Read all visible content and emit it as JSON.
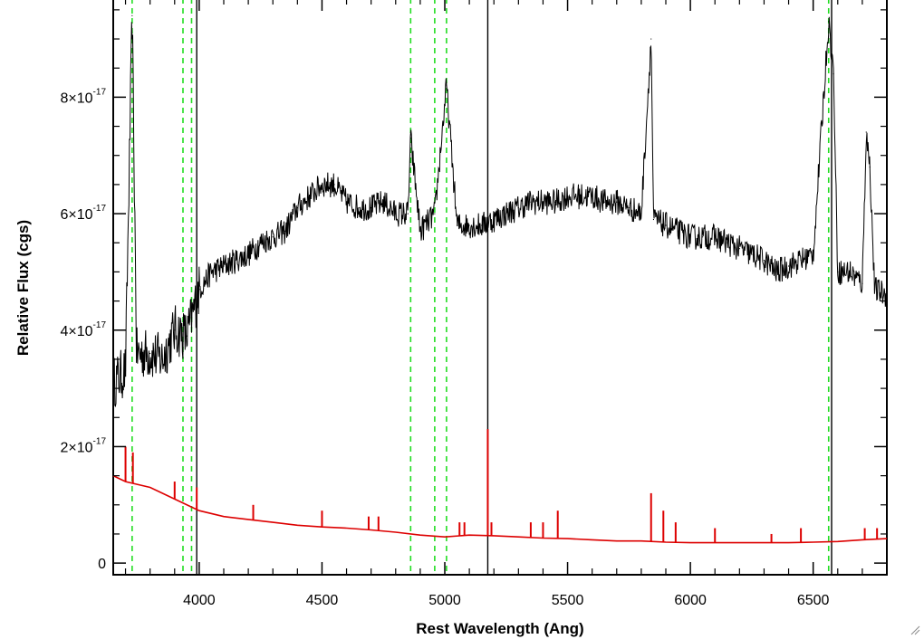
{
  "chart_data": {
    "type": "line",
    "title": "",
    "xlabel": "Rest Wavelength (Ang)",
    "ylabel": "Relative Flux (cgs)",
    "xlim": [
      3650,
      6800
    ],
    "ylim": [
      -2e-18,
      9.7e-17
    ],
    "x_ticks": [
      4000,
      4500,
      5000,
      5500,
      6000,
      6500
    ],
    "x_tick_labels": [
      "4000",
      "4500",
      "5000",
      "5500",
      "6000",
      "6500"
    ],
    "y_ticks": [
      0,
      2e-17,
      4e-17,
      6e-17,
      8e-17
    ],
    "y_tick_labels": [
      {
        "mantissa": "0",
        "exponent": ""
      },
      {
        "mantissa": "2×10",
        "exponent": "-17"
      },
      {
        "mantissa": "4×10",
        "exponent": "-17"
      },
      {
        "mantissa": "6×10",
        "exponent": "-17"
      },
      {
        "mantissa": "8×10",
        "exponent": "-17"
      }
    ],
    "grid": false,
    "reference_lines": {
      "dashed_green": [
        3727,
        3934,
        3969,
        4861,
        4959,
        5007,
        6563
      ],
      "solid_black": [
        3990,
        5175,
        6575
      ]
    },
    "series": [
      {
        "color": "#000000",
        "points": [
          [
            3650,
            3.1e-17
          ],
          [
            3700,
            3.3e-17
          ],
          [
            3727,
            9.4e-17
          ],
          [
            3745,
            3.6e-17
          ],
          [
            3800,
            3.6e-17
          ],
          [
            3850,
            3.5e-17
          ],
          [
            3900,
            4e-17
          ],
          [
            3950,
            3.9e-17
          ],
          [
            4000,
            4.7e-17
          ],
          [
            4050,
            5e-17
          ],
          [
            4100,
            5.1e-17
          ],
          [
            4150,
            5.2e-17
          ],
          [
            4200,
            5.3e-17
          ],
          [
            4250,
            5.5e-17
          ],
          [
            4300,
            5.6e-17
          ],
          [
            4350,
            5.7e-17
          ],
          [
            4400,
            6.1e-17
          ],
          [
            4450,
            6.3e-17
          ],
          [
            4500,
            6.5e-17
          ],
          [
            4550,
            6.5e-17
          ],
          [
            4600,
            6.2e-17
          ],
          [
            4650,
            6.1e-17
          ],
          [
            4700,
            6.1e-17
          ],
          [
            4750,
            6.2e-17
          ],
          [
            4800,
            6e-17
          ],
          [
            4850,
            6e-17
          ],
          [
            4861,
            7.3e-17
          ],
          [
            4900,
            5.7e-17
          ],
          [
            4959,
            6e-17
          ],
          [
            5007,
            8.2e-17
          ],
          [
            5050,
            5.8e-17
          ],
          [
            5100,
            5.8e-17
          ],
          [
            5150,
            5.8e-17
          ],
          [
            5200,
            5.9e-17
          ],
          [
            5250,
            6e-17
          ],
          [
            5300,
            6.1e-17
          ],
          [
            5350,
            6.2e-17
          ],
          [
            5400,
            6.2e-17
          ],
          [
            5450,
            6.2e-17
          ],
          [
            5500,
            6.3e-17
          ],
          [
            5550,
            6.3e-17
          ],
          [
            5600,
            6.3e-17
          ],
          [
            5650,
            6.2e-17
          ],
          [
            5700,
            6.2e-17
          ],
          [
            5750,
            6.1e-17
          ],
          [
            5800,
            6e-17
          ],
          [
            5840,
            9e-17
          ],
          [
            5850,
            5.9e-17
          ],
          [
            5900,
            5.8e-17
          ],
          [
            5950,
            5.7e-17
          ],
          [
            6000,
            5.6e-17
          ],
          [
            6050,
            5.6e-17
          ],
          [
            6100,
            5.6e-17
          ],
          [
            6150,
            5.5e-17
          ],
          [
            6200,
            5.4e-17
          ],
          [
            6250,
            5.3e-17
          ],
          [
            6300,
            5.2e-17
          ],
          [
            6350,
            5e-17
          ],
          [
            6400,
            5.1e-17
          ],
          [
            6450,
            5.2e-17
          ],
          [
            6500,
            5.3e-17
          ],
          [
            6563,
            9.3e-17
          ],
          [
            6583,
            8.4e-17
          ],
          [
            6600,
            5e-17
          ],
          [
            6650,
            5e-17
          ],
          [
            6700,
            4.8e-17
          ],
          [
            6716,
            7.4e-17
          ],
          [
            6731,
            6.8e-17
          ],
          [
            6750,
            4.7e-17
          ],
          [
            6800,
            4.6e-17
          ]
        ]
      },
      {
        "color": "#dd0000",
        "points": [
          [
            3650,
            1.5e-17
          ],
          [
            3700,
            1.4e-17
          ],
          [
            3800,
            1.3e-17
          ],
          [
            3900,
            1.1e-17
          ],
          [
            4000,
            9e-18
          ],
          [
            4100,
            8e-18
          ],
          [
            4200,
            7.5e-18
          ],
          [
            4300,
            7e-18
          ],
          [
            4400,
            6.5e-18
          ],
          [
            4500,
            6.2e-18
          ],
          [
            4600,
            6e-18
          ],
          [
            4700,
            5.7e-18
          ],
          [
            4800,
            5.3e-18
          ],
          [
            4900,
            4.8e-18
          ],
          [
            5000,
            4.5e-18
          ],
          [
            5100,
            4.8e-18
          ],
          [
            5200,
            4.7e-18
          ],
          [
            5300,
            4.5e-18
          ],
          [
            5400,
            4.3e-18
          ],
          [
            5500,
            4.2e-18
          ],
          [
            5600,
            4e-18
          ],
          [
            5700,
            3.8e-18
          ],
          [
            5800,
            3.8e-18
          ],
          [
            5900,
            3.6e-18
          ],
          [
            6000,
            3.5e-18
          ],
          [
            6100,
            3.5e-18
          ],
          [
            6200,
            3.5e-18
          ],
          [
            6300,
            3.5e-18
          ],
          [
            6400,
            3.5e-18
          ],
          [
            6500,
            3.6e-18
          ],
          [
            6600,
            3.7e-18
          ],
          [
            6700,
            4e-18
          ],
          [
            6800,
            4.2e-18
          ]
        ],
        "spikes": [
          [
            3700,
            2e-17
          ],
          [
            3730,
            1.9e-17
          ],
          [
            3900,
            1.4e-17
          ],
          [
            3990,
            1.3e-17
          ],
          [
            4220,
            1e-17
          ],
          [
            4500,
            9e-18
          ],
          [
            4690,
            8e-18
          ],
          [
            4730,
            8e-18
          ],
          [
            5060,
            7e-18
          ],
          [
            5080,
            7e-18
          ],
          [
            5175,
            2.3e-17
          ],
          [
            5190,
            7e-18
          ],
          [
            5350,
            7e-18
          ],
          [
            5400,
            7e-18
          ],
          [
            5460,
            9e-18
          ],
          [
            5840,
            1.2e-17
          ],
          [
            5890,
            9e-18
          ],
          [
            5940,
            7e-18
          ],
          [
            6100,
            6e-18
          ],
          [
            6330,
            5e-18
          ],
          [
            6450,
            6e-18
          ],
          [
            6710,
            6e-18
          ],
          [
            6760,
            6e-18
          ]
        ]
      }
    ]
  }
}
